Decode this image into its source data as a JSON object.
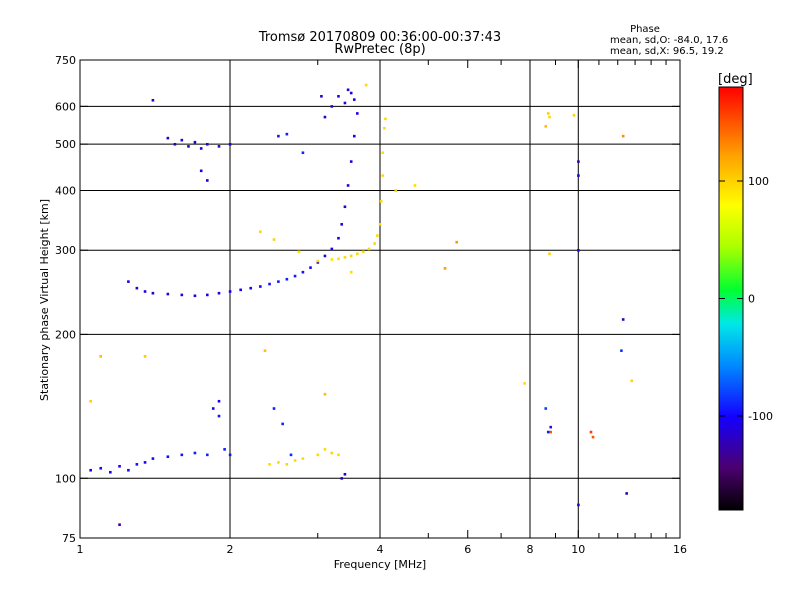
{
  "title_line1": "Tromsø 20170809 00:36:00-00:37:43",
  "title_line2": "RwPretec (8p)",
  "stats": {
    "heading": "Phase",
    "line_o": "mean, sd,O: -84.0, 17.6",
    "line_x": "mean, sd,X:  96.5, 19.2"
  },
  "colorbar": {
    "label": "[deg]",
    "ticks": [
      "100",
      "0",
      "-100"
    ],
    "tick_values": [
      100,
      0,
      -100
    ],
    "range": [
      -180,
      180
    ]
  },
  "chart_data": {
    "type": "scatter",
    "title": "Tromsø 20170809 00:36:00-00:37:43",
    "subtitle": "RwPretec (8p)",
    "xlabel": "Frequency [MHz]",
    "ylabel": "Stationary phase Virtual Height [km]",
    "xscale": "log",
    "yscale": "log",
    "xlim": [
      1,
      16
    ],
    "ylim": [
      75,
      750
    ],
    "xticks": [
      "1",
      "2",
      "4",
      "6",
      "8",
      "10",
      "16"
    ],
    "xtick_values": [
      1,
      2,
      4,
      6,
      8,
      10,
      16
    ],
    "minor_xtick_values": [
      3,
      5,
      7,
      9,
      11,
      12,
      13,
      14,
      15
    ],
    "vgrid_values": [
      2,
      4,
      8,
      10
    ],
    "yticks": [
      "75",
      "100",
      "200",
      "300",
      "400",
      "500",
      "600",
      "750"
    ],
    "ytick_values": [
      75,
      100,
      200,
      300,
      400,
      500,
      600,
      750
    ],
    "grid": true,
    "color_variable": "Phase [deg]",
    "series": [
      {
        "mode": "O",
        "mean_phase": -84.0,
        "points": [
          [
            1.25,
            258,
            -110
          ],
          [
            1.3,
            250,
            -115
          ],
          [
            1.35,
            246,
            -112
          ],
          [
            1.4,
            244,
            -118
          ],
          [
            1.5,
            243,
            -114
          ],
          [
            1.6,
            242,
            -116
          ],
          [
            1.7,
            241,
            -113
          ],
          [
            1.8,
            242,
            -110
          ],
          [
            1.9,
            244,
            -108
          ],
          [
            2.0,
            246,
            -105
          ],
          [
            2.1,
            248,
            -103
          ],
          [
            2.2,
            250,
            -100
          ],
          [
            2.3,
            252,
            -98
          ],
          [
            2.4,
            255,
            -95
          ],
          [
            2.5,
            258,
            -92
          ],
          [
            2.6,
            261,
            -90
          ],
          [
            2.7,
            265,
            -92
          ],
          [
            2.8,
            270,
            -95
          ],
          [
            2.9,
            276,
            -100
          ],
          [
            3.0,
            283,
            -105
          ],
          [
            3.1,
            292,
            -108
          ],
          [
            3.2,
            302,
            -110
          ],
          [
            3.3,
            318,
            -112
          ],
          [
            3.35,
            340,
            -115
          ],
          [
            3.4,
            370,
            -118
          ],
          [
            3.45,
            410,
            -115
          ],
          [
            3.5,
            460,
            -112
          ],
          [
            3.55,
            520,
            -110
          ],
          [
            3.6,
            580,
            -108
          ],
          [
            3.55,
            620,
            -112
          ],
          [
            3.5,
            640,
            -115
          ],
          [
            3.45,
            650,
            -118
          ],
          [
            3.4,
            610,
            -110
          ],
          [
            3.3,
            630,
            -112
          ],
          [
            3.2,
            600,
            -118
          ],
          [
            3.1,
            570,
            -120
          ],
          [
            3.05,
            630,
            -115
          ],
          [
            1.5,
            515,
            -118
          ],
          [
            1.55,
            500,
            -120
          ],
          [
            1.6,
            510,
            -115
          ],
          [
            1.65,
            495,
            -112
          ],
          [
            1.7,
            505,
            -118
          ],
          [
            1.75,
            490,
            -110
          ],
          [
            1.8,
            500,
            -115
          ],
          [
            1.9,
            495,
            -112
          ],
          [
            2.0,
            500,
            -110
          ],
          [
            1.75,
            440,
            -115
          ],
          [
            1.8,
            420,
            -112
          ],
          [
            1.4,
            618,
            -115
          ],
          [
            2.5,
            520,
            -95
          ],
          [
            2.6,
            525,
            -92
          ],
          [
            2.8,
            480,
            -90
          ],
          [
            1.05,
            104,
            -100
          ],
          [
            1.1,
            105,
            -98
          ],
          [
            1.15,
            103,
            -102
          ],
          [
            1.2,
            106,
            -100
          ],
          [
            1.25,
            104,
            -98
          ],
          [
            1.3,
            107,
            -95
          ],
          [
            1.35,
            108,
            -100
          ],
          [
            1.4,
            110,
            -98
          ],
          [
            1.5,
            111,
            -96
          ],
          [
            1.6,
            112,
            -95
          ],
          [
            1.7,
            113,
            -92
          ],
          [
            1.8,
            112,
            -90
          ],
          [
            1.85,
            140,
            -100
          ],
          [
            1.9,
            135,
            -95
          ],
          [
            1.95,
            115,
            -92
          ],
          [
            2.0,
            112,
            -95
          ],
          [
            1.9,
            145,
            -105
          ],
          [
            2.45,
            140,
            -92
          ],
          [
            2.55,
            130,
            -90
          ],
          [
            2.65,
            112,
            -88
          ],
          [
            3.35,
            100,
            -115
          ],
          [
            3.4,
            102,
            -112
          ],
          [
            1.2,
            80,
            -130
          ],
          [
            8.8,
            128,
            -95
          ],
          [
            8.7,
            125,
            -92
          ],
          [
            10.0,
            460,
            -125
          ],
          [
            10.0,
            430,
            -110
          ],
          [
            10.0,
            300,
            -100
          ],
          [
            10.0,
            88,
            -110
          ],
          [
            12.3,
            215,
            -130
          ],
          [
            12.5,
            93,
            -120
          ],
          [
            8.6,
            140,
            -80
          ],
          [
            12.2,
            185,
            -85
          ]
        ]
      },
      {
        "mode": "X",
        "mean_phase": 96.5,
        "points": [
          [
            3.2,
            287,
            92
          ],
          [
            3.3,
            288,
            95
          ],
          [
            3.4,
            290,
            96
          ],
          [
            3.5,
            292,
            98
          ],
          [
            3.6,
            295,
            97
          ],
          [
            3.7,
            298,
            95
          ],
          [
            3.8,
            302,
            96
          ],
          [
            3.9,
            310,
            98
          ],
          [
            3.95,
            322,
            96
          ],
          [
            4.0,
            340,
            95
          ],
          [
            4.02,
            380,
            97
          ],
          [
            4.05,
            430,
            96
          ],
          [
            4.05,
            480,
            94
          ],
          [
            4.08,
            540,
            95
          ],
          [
            4.1,
            565,
            96
          ],
          [
            3.5,
            270,
            95
          ],
          [
            3.0,
            285,
            96
          ],
          [
            2.75,
            298,
            92
          ],
          [
            2.45,
            316,
            100
          ],
          [
            2.3,
            328,
            98
          ],
          [
            3.75,
            665,
            98
          ],
          [
            4.3,
            400,
            100
          ],
          [
            4.7,
            410,
            95
          ],
          [
            5.4,
            275,
            125
          ],
          [
            5.7,
            312,
            125
          ],
          [
            2.4,
            107,
            95
          ],
          [
            2.5,
            108,
            96
          ],
          [
            2.6,
            107,
            98
          ],
          [
            2.7,
            109,
            95
          ],
          [
            2.8,
            110,
            96
          ],
          [
            3.0,
            112,
            97
          ],
          [
            3.1,
            115,
            96
          ],
          [
            3.2,
            113,
            98
          ],
          [
            3.3,
            112,
            95
          ],
          [
            8.7,
            580,
            100
          ],
          [
            8.75,
            570,
            95
          ],
          [
            8.6,
            545,
            110
          ],
          [
            9.8,
            575,
            100
          ],
          [
            8.75,
            295,
            100
          ],
          [
            12.3,
            520,
            130
          ],
          [
            8.8,
            125,
            150
          ],
          [
            10.6,
            125,
            160
          ],
          [
            10.7,
            122,
            150
          ],
          [
            1.1,
            180,
            110
          ],
          [
            1.35,
            180,
            105
          ],
          [
            2.35,
            185,
            108
          ],
          [
            3.1,
            150,
            110
          ],
          [
            1.05,
            145,
            100
          ],
          [
            7.8,
            158,
            95
          ],
          [
            12.8,
            160,
            98
          ]
        ]
      }
    ]
  }
}
